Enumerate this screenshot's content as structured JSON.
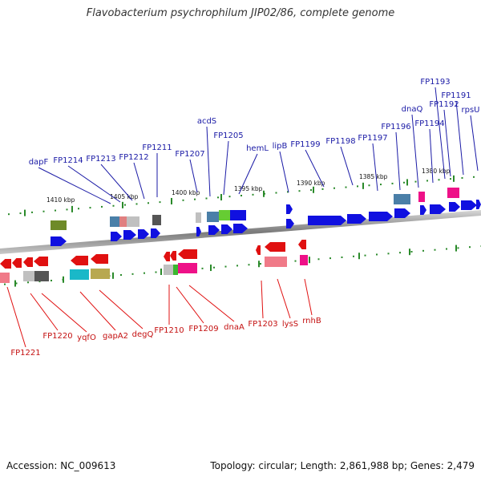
{
  "title": "Flavobacterium psychrophilum JIP02/86, complete genome",
  "footer": {
    "accession": "Accession: NC_009613",
    "summary": "Topology: circular; Length: 2,861,988 bp; Genes: 2,479"
  },
  "colors": {
    "forward_gene": "#1010e0",
    "reverse_gene": "#e01010",
    "backbone": "#888888",
    "tick_major": "#1a8a1a",
    "top_label": "#1a1aa6",
    "bottom_label": "#c41010"
  },
  "scale_labels": [
    "1410 kbp",
    "1405 kbp",
    "1400 kbp",
    "1395 kbp",
    "1390 kbp",
    "1385 kbp",
    "1380 kbp"
  ],
  "top_genes": [
    "dapF",
    "FP1214",
    "FP1213",
    "FP1212",
    "FP1211",
    "FP1207",
    "acdS",
    "FP1205",
    "hemL",
    "lipB",
    "FP1199",
    "FP1198",
    "FP1197",
    "FP1196",
    "dnaQ",
    "FP1194",
    "FP1193",
    "FP1192",
    "FP1191",
    "rpsU"
  ],
  "bottom_genes": [
    "FP1221",
    "FP1220",
    "yqfO",
    "gapA2",
    "degQ",
    "FP1210",
    "FP1209",
    "dnaA",
    "FP1203",
    "lysS",
    "rnhB"
  ]
}
